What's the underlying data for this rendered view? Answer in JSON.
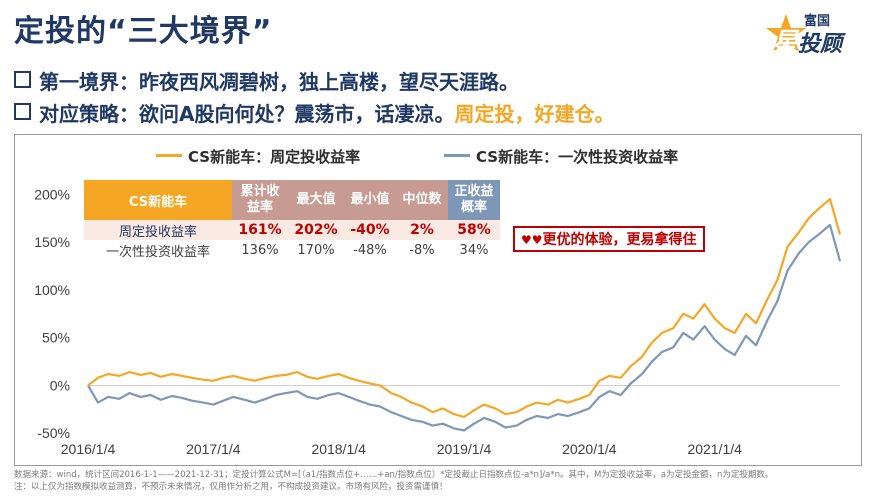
{
  "header": {
    "title": "定投的“三大境界”",
    "brand_small": "富国",
    "brand_star": "星",
    "brand_main": "投顾"
  },
  "bullets": {
    "line1": "第一境界：昨夜西风凋碧树，独上高楼，望尽天涯路。",
    "line2_main": "对应策略：欲问A股向何处？震荡市，话凄凉。",
    "line2_highlight": "周定投，好建仓。"
  },
  "legend": {
    "series1": "CS新能车：周定投收益率",
    "series2": "CS新能车：一次性投资收益率"
  },
  "table": {
    "header_name": "CS新能车",
    "headers": [
      "累计收益率",
      "最大值",
      "最小值",
      "中位数",
      "正收益概率"
    ],
    "header_lines": [
      [
        "累计收",
        "益率"
      ],
      [
        "最大值"
      ],
      [
        "最小值"
      ],
      [
        "中位数"
      ],
      [
        "正收益",
        "概率"
      ]
    ],
    "rows": [
      {
        "name": "周定投收益率",
        "values": [
          "161%",
          "202%",
          "-40%",
          "2%",
          "58%"
        ]
      },
      {
        "name": "一次性投资收益率",
        "values": [
          "136%",
          "170%",
          "-48%",
          "-8%",
          "34%"
        ]
      }
    ]
  },
  "callout": {
    "hearts": "♥♥",
    "text": "更优的体验，更易拿得住"
  },
  "source": {
    "line1": "数据来源：wind，统计区间2016-1-1——2021-12-31；定投计算公式M=[（a1/指数点位+……+an/指数点位）*定投截止日指数点位-a*n]/a*n。其中，M为定投收益率，a为定投金额，n为定投期数。",
    "line2": "注：以上仅为指数模拟收益测算，不预示未来情况，仅用作分析之用，不构成投资建议。市场有风险，投资需谨慎！"
  },
  "colors": {
    "series1": "#f5a623",
    "series2": "#7e97b7",
    "title": "#1f3864",
    "callout": "#c00000"
  },
  "chart_data": {
    "type": "line",
    "x_tick_labels": [
      "2016/1/4",
      "2017/1/4",
      "2018/1/4",
      "2019/1/4",
      "2020/1/4",
      "2021/1/4"
    ],
    "y_tick_labels": [
      "200%",
      "150%",
      "100%",
      "50%",
      "0%",
      "-50%"
    ],
    "y_ticks": [
      200,
      150,
      100,
      50,
      0,
      -50
    ],
    "ylim": [
      -55,
      215
    ],
    "xlim": [
      2016.0,
      2022.0
    ],
    "series": [
      {
        "name": "CS新能车：周定投收益率",
        "x": [
          2016.0,
          2016.08,
          2016.16,
          2016.25,
          2016.33,
          2016.42,
          2016.5,
          2016.58,
          2016.67,
          2016.75,
          2016.83,
          2016.92,
          2017.0,
          2017.08,
          2017.16,
          2017.25,
          2017.33,
          2017.42,
          2017.5,
          2017.58,
          2017.67,
          2017.75,
          2017.83,
          2017.92,
          2018.0,
          2018.08,
          2018.16,
          2018.25,
          2018.33,
          2018.42,
          2018.5,
          2018.58,
          2018.67,
          2018.75,
          2018.83,
          2018.92,
          2019.0,
          2019.08,
          2019.16,
          2019.25,
          2019.33,
          2019.42,
          2019.5,
          2019.58,
          2019.67,
          2019.75,
          2019.83,
          2019.92,
          2020.0,
          2020.08,
          2020.16,
          2020.25,
          2020.33,
          2020.42,
          2020.5,
          2020.58,
          2020.67,
          2020.75,
          2020.83,
          2020.92,
          2021.0,
          2021.08,
          2021.16,
          2021.25,
          2021.33,
          2021.42,
          2021.5,
          2021.58,
          2021.67,
          2021.75,
          2021.83,
          2021.92,
          2022.0
        ],
        "values": [
          0,
          8,
          12,
          10,
          14,
          11,
          13,
          9,
          12,
          10,
          8,
          6,
          5,
          8,
          10,
          7,
          5,
          8,
          10,
          11,
          14,
          9,
          7,
          10,
          12,
          8,
          5,
          2,
          0,
          -8,
          -12,
          -18,
          -22,
          -28,
          -24,
          -30,
          -33,
          -26,
          -20,
          -24,
          -30,
          -28,
          -22,
          -18,
          -20,
          -15,
          -18,
          -14,
          -10,
          5,
          10,
          8,
          20,
          30,
          45,
          55,
          60,
          75,
          70,
          85,
          70,
          60,
          55,
          75,
          65,
          90,
          110,
          145,
          160,
          175,
          185,
          195,
          158
        ]
      },
      {
        "name": "CS新能车：一次性投资收益率",
        "x": [
          2016.0,
          2016.08,
          2016.16,
          2016.25,
          2016.33,
          2016.42,
          2016.5,
          2016.58,
          2016.67,
          2016.75,
          2016.83,
          2016.92,
          2017.0,
          2017.08,
          2017.16,
          2017.25,
          2017.33,
          2017.42,
          2017.5,
          2017.58,
          2017.67,
          2017.75,
          2017.83,
          2017.92,
          2018.0,
          2018.08,
          2018.16,
          2018.25,
          2018.33,
          2018.42,
          2018.5,
          2018.58,
          2018.67,
          2018.75,
          2018.83,
          2018.92,
          2019.0,
          2019.08,
          2019.16,
          2019.25,
          2019.33,
          2019.42,
          2019.5,
          2019.58,
          2019.67,
          2019.75,
          2019.83,
          2019.92,
          2020.0,
          2020.08,
          2020.16,
          2020.25,
          2020.33,
          2020.42,
          2020.5,
          2020.58,
          2020.67,
          2020.75,
          2020.83,
          2020.92,
          2021.0,
          2021.08,
          2021.16,
          2021.25,
          2021.33,
          2021.42,
          2021.5,
          2021.58,
          2021.67,
          2021.75,
          2021.83,
          2021.92,
          2022.0
        ],
        "values": [
          0,
          -18,
          -12,
          -14,
          -8,
          -12,
          -10,
          -15,
          -11,
          -13,
          -16,
          -18,
          -20,
          -16,
          -12,
          -15,
          -18,
          -14,
          -10,
          -8,
          -6,
          -12,
          -14,
          -10,
          -8,
          -12,
          -16,
          -20,
          -22,
          -28,
          -32,
          -36,
          -38,
          -42,
          -40,
          -45,
          -47,
          -40,
          -34,
          -38,
          -44,
          -42,
          -36,
          -32,
          -34,
          -30,
          -32,
          -28,
          -24,
          -12,
          -6,
          -10,
          2,
          12,
          25,
          35,
          40,
          55,
          48,
          62,
          48,
          38,
          32,
          52,
          42,
          68,
          88,
          120,
          138,
          150,
          158,
          168,
          130
        ]
      }
    ],
    "legend_position": "top",
    "grid": false
  }
}
